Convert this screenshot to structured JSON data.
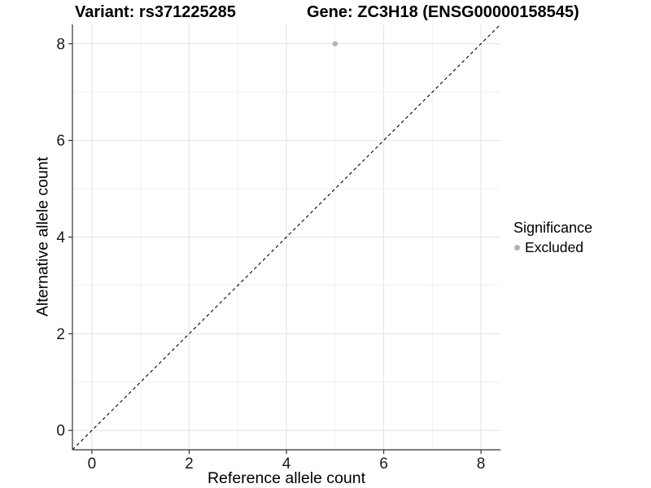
{
  "page": {
    "background": "#ffffff"
  },
  "chart_data": {
    "type": "scatter",
    "title_left": "Variant: rs371225285",
    "title_right": "Gene: ZC3H18 (ENSG00000158545)",
    "xlabel": "Reference allele count",
    "ylabel": "Alternative allele count",
    "xlim": [
      -0.4,
      8.4
    ],
    "ylim": [
      -0.4,
      8.4
    ],
    "xticks": [
      0,
      2,
      4,
      6,
      8
    ],
    "yticks": [
      0,
      2,
      4,
      6,
      8
    ],
    "xminor": [
      1,
      3,
      5,
      7
    ],
    "yminor": [
      1,
      3,
      5,
      7
    ],
    "grid": "on",
    "legend_position": "right",
    "points": [
      {
        "x": 5,
        "y": 8,
        "series": "Excluded",
        "color": "#b3b3b3",
        "radius": 3.2
      }
    ],
    "reference_line": {
      "type": "identity",
      "slope": 1,
      "intercept": 0,
      "style": "dashed",
      "color": "#000000"
    },
    "legend": {
      "title": "Significance",
      "items": [
        {
          "label": "Excluded",
          "color": "#b3b3b3",
          "marker": "circle"
        }
      ]
    },
    "colors": {
      "grid_major": "#e2e2e2",
      "grid_minor": "#efefef",
      "axis_line": "#333333",
      "tick_text": "#1a1a1a"
    }
  }
}
